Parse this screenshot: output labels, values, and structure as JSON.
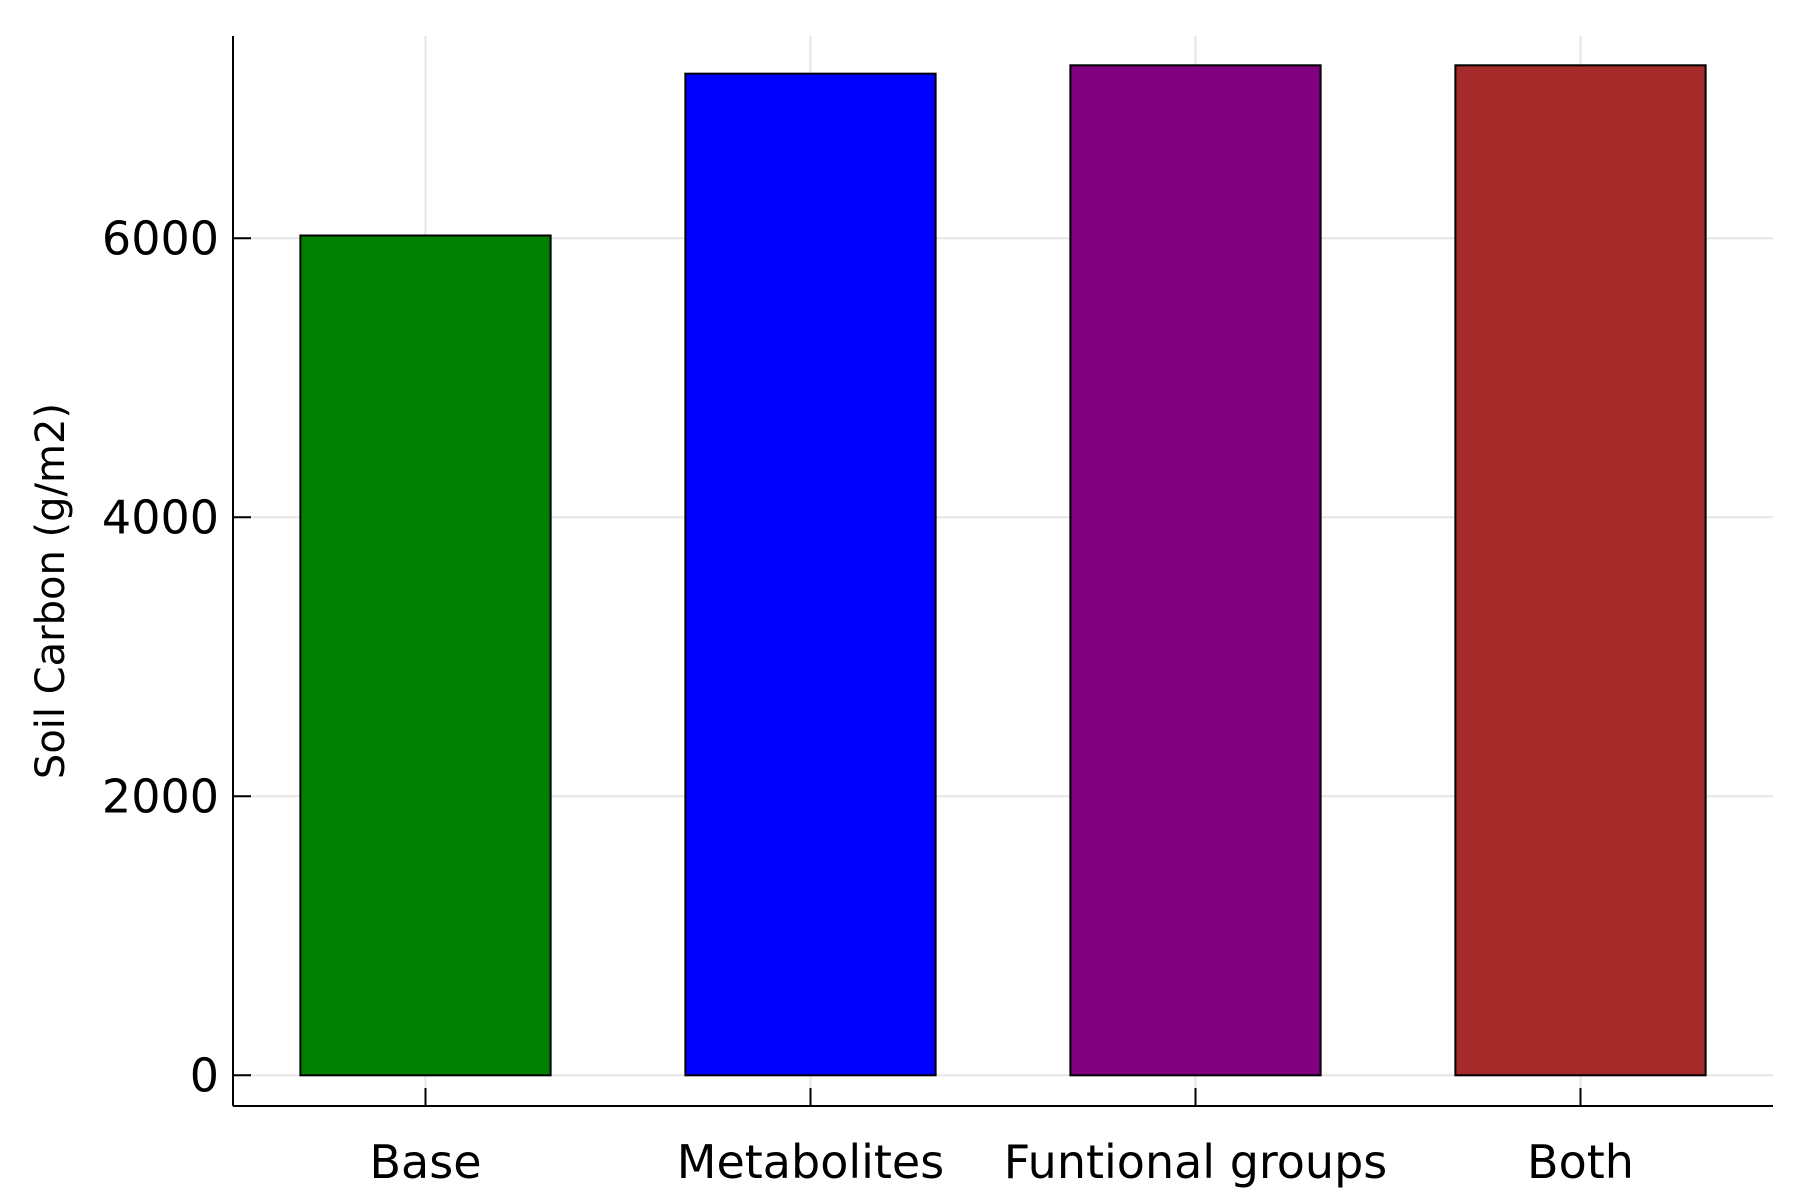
{
  "chart_data": {
    "type": "bar",
    "title": "",
    "xlabel": "",
    "ylabel": "Soil Carbon (g/m2)",
    "categories": [
      "Base",
      "Metabolites",
      "Funtional groups",
      "Both"
    ],
    "values": [
      6020,
      7180,
      7240,
      7240
    ],
    "colors": [
      "#008000",
      "#0000ff",
      "#800080",
      "#a52a2a"
    ],
    "ylim": [
      -220,
      7450
    ],
    "yticks": [
      0,
      2000,
      4000,
      6000
    ],
    "ytick_labels": [
      "0",
      "2000",
      "4000",
      "6000"
    ],
    "grid": true,
    "legend": "none"
  }
}
